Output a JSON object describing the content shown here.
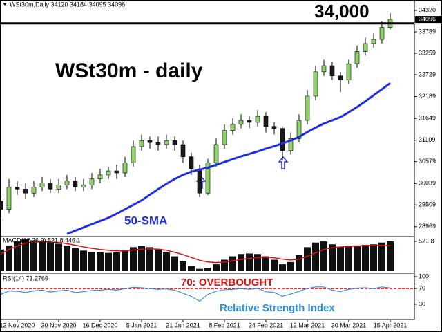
{
  "chart_data": [
    {
      "type": "candlestick",
      "header": "WSt30m,Daily  34120 34184 34095 34096",
      "title": "WSt30m - daily",
      "categories": [
        null,
        null,
        "12 Nov 2020",
        null,
        null,
        null,
        null,
        "30 Nov 2020",
        null,
        null,
        null,
        null,
        "16 Dec 2020",
        null,
        null,
        null,
        null,
        "5 Jan 2021",
        null,
        null,
        null,
        null,
        "21 Jan 2021",
        null,
        null,
        null,
        null,
        "8 Feb 2021",
        null,
        null,
        null,
        null,
        "24 Feb 2021",
        null,
        null,
        null,
        null,
        "12 Mar 2021",
        null,
        null,
        null,
        null,
        "30 Mar 2021",
        null,
        null,
        null,
        null,
        "15 Apr 2021"
      ],
      "open": [
        29600,
        29400,
        29950,
        29900,
        29800,
        29950,
        30050,
        29900,
        30000,
        30100,
        29950,
        30000,
        30150,
        30250,
        30350,
        30300,
        30550,
        30950,
        31100,
        31050,
        31000,
        31100,
        31000,
        30700,
        30400,
        29800,
        30550,
        31000,
        31350,
        31500,
        31600,
        31550,
        31700,
        31450,
        31400,
        30850,
        31150,
        31600,
        32200,
        32800,
        32950,
        32700,
        32600,
        33000,
        33300,
        33500,
        33600,
        33900
      ],
      "high": [
        29750,
        30150,
        30100,
        30050,
        30100,
        30200,
        30150,
        30150,
        30250,
        30200,
        30150,
        30300,
        30400,
        30450,
        30500,
        30700,
        31100,
        31250,
        31200,
        31200,
        31250,
        31200,
        31100,
        30800,
        30500,
        30650,
        31150,
        31500,
        31650,
        31750,
        31700,
        31850,
        31800,
        31550,
        31450,
        31300,
        31750,
        32350,
        32950,
        33100,
        33050,
        32800,
        33100,
        33450,
        33650,
        33750,
        34050,
        34250
      ],
      "low": [
        29200,
        29300,
        29750,
        29650,
        29700,
        29850,
        29800,
        29800,
        29900,
        29850,
        29850,
        29900,
        30050,
        30150,
        30150,
        30200,
        30450,
        30850,
        30900,
        30850,
        30900,
        30850,
        30550,
        30250,
        29700,
        29750,
        30450,
        30900,
        31250,
        31400,
        31400,
        31450,
        31300,
        31250,
        30600,
        30750,
        31050,
        31500,
        32100,
        32700,
        32600,
        32300,
        32500,
        32900,
        33200,
        33400,
        33500,
        33850
      ],
      "close": [
        29400,
        29950,
        29900,
        29800,
        29950,
        30050,
        29900,
        30000,
        30100,
        29950,
        30000,
        30150,
        30250,
        30350,
        30300,
        30550,
        30950,
        31100,
        31050,
        31000,
        31100,
        31000,
        30700,
        30400,
        29800,
        30550,
        31000,
        31350,
        31500,
        31600,
        31550,
        31700,
        31450,
        31400,
        30850,
        31150,
        31600,
        32200,
        32800,
        32950,
        32700,
        32600,
        33000,
        33300,
        33500,
        33600,
        33900,
        34096
      ],
      "up_color": "#8fd16a",
      "down_color": "#1a1a1a",
      "series": [
        {
          "name": "50-SMA",
          "color": "#1f2fe0",
          "values": [
            null,
            null,
            null,
            null,
            null,
            null,
            null,
            null,
            28790,
            28870,
            28950,
            29030,
            29110,
            29190,
            29290,
            29400,
            29510,
            29620,
            29760,
            29900,
            30030,
            30150,
            30250,
            30330,
            30380,
            30430,
            30500,
            30570,
            30640,
            30710,
            30770,
            30830,
            30900,
            30960,
            31030,
            31100,
            31190,
            31310,
            31420,
            31520,
            31600,
            31680,
            31800,
            31930,
            32070,
            32220,
            32370,
            32520
          ]
        }
      ],
      "ylim": [
        28760,
        34474
      ],
      "yticks": [
        34320,
        33789,
        33259,
        32729,
        32189,
        31649,
        31109,
        30579,
        30039,
        29509,
        28969
      ],
      "hline": {
        "value": 34000,
        "label": "34,000"
      },
      "last_price": 34096
    },
    {
      "type": "bar",
      "title": "MACD(12,26,9) 521.8 446.1",
      "color": "#111111",
      "values": [
        380,
        450,
        520,
        560,
        540,
        520,
        510,
        480,
        450,
        400,
        360,
        340,
        330,
        320,
        330,
        370,
        420,
        440,
        420,
        390,
        330,
        260,
        180,
        90,
        40,
        60,
        120,
        200,
        260,
        300,
        310,
        300,
        260,
        200,
        120,
        160,
        280,
        420,
        500,
        520,
        470,
        430,
        440,
        450,
        460,
        470,
        500,
        521.8
      ],
      "signal": {
        "color": "#e01010",
        "values": [
          300,
          380,
          440,
          490,
          510,
          515,
          510,
          500,
          480,
          455,
          425,
          400,
          380,
          365,
          355,
          355,
          370,
          385,
          390,
          385,
          365,
          330,
          290,
          240,
          190,
          160,
          150,
          160,
          180,
          205,
          225,
          240,
          245,
          235,
          210,
          195,
          210,
          260,
          320,
          380,
          410,
          425,
          435,
          440,
          445,
          448,
          450,
          446.1
        ]
      },
      "ylim": [
        0,
        582
      ],
      "yticks": [
        521.8
      ]
    },
    {
      "type": "line",
      "title": "RSI(14) 71.2769",
      "color": "#2e8fe0",
      "values": [
        55,
        64,
        63,
        60,
        64,
        66,
        61,
        64,
        66,
        60,
        62,
        65,
        66,
        68,
        66,
        70,
        73,
        72,
        70,
        68,
        69,
        66,
        58,
        50,
        38,
        55,
        63,
        67,
        68,
        70,
        68,
        70,
        62,
        60,
        50,
        56,
        63,
        70,
        74,
        74,
        66,
        62,
        68,
        71,
        72,
        70,
        74,
        71.2769
      ],
      "ylim": [
        0,
        100
      ],
      "yticks": [
        100,
        70,
        30
      ],
      "level": {
        "value": 70,
        "label": "70: OVERBOUGHT",
        "color": "#e01010"
      },
      "note": "Relative Strength Index"
    }
  ]
}
